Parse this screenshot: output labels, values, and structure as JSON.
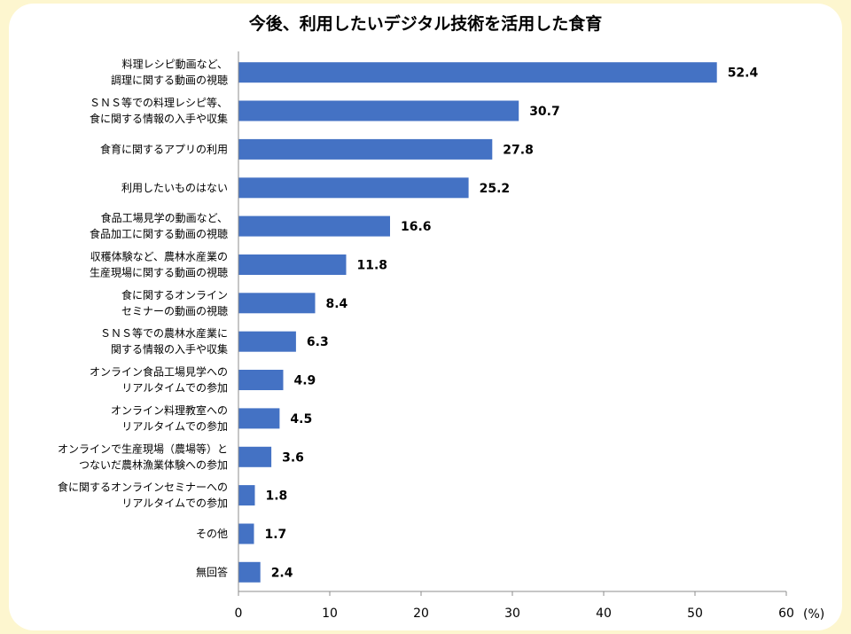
{
  "chart_data": {
    "type": "bar",
    "orientation": "horizontal",
    "title": "今後、利用したいデジタル技術を活用した食育",
    "unit": "(%)",
    "xlim": [
      0,
      60
    ],
    "xticks": [
      0,
      10,
      20,
      30,
      40,
      50,
      60
    ],
    "grid": false,
    "bar_color": "#4472c4",
    "categories": [
      [
        "料理レシピ動画など、",
        "調理に関する動画の視聴"
      ],
      [
        "ＳＮＳ等での料理レシピ等、",
        "食に関する情報の入手や収集"
      ],
      [
        "食育に関するアプリの利用"
      ],
      [
        "利用したいものはない"
      ],
      [
        "食品工場見学の動画など、",
        "食品加工に関する動画の視聴"
      ],
      [
        "収穫体験など、農林水産業の",
        "生産現場に関する動画の視聴"
      ],
      [
        "食に関するオンライン",
        "セミナーの動画の視聴"
      ],
      [
        "ＳＮＳ等での農林水産業に",
        "関する情報の入手や収集"
      ],
      [
        "オンライン食品工場見学への",
        "リアルタイムでの参加"
      ],
      [
        "オンライン料理教室への",
        "リアルタイムでの参加"
      ],
      [
        "オンラインで生産現場（農場等）と",
        "つないだ農林漁業体験への参加"
      ],
      [
        "食に関するオンラインセミナーへの",
        "リアルタイムでの参加"
      ],
      [
        "その他"
      ],
      [
        "無回答"
      ]
    ],
    "values": [
      52.4,
      30.7,
      27.8,
      25.2,
      16.6,
      11.8,
      8.4,
      6.3,
      4.9,
      4.5,
      3.6,
      1.8,
      1.7,
      2.4
    ],
    "value_labels": [
      "52.4",
      "30.7",
      "27.8",
      "25.2",
      "16.6",
      "11.8",
      "8.4",
      "6.3",
      "4.9",
      "4.5",
      "3.6",
      "1.8",
      "1.7",
      "2.4"
    ]
  }
}
